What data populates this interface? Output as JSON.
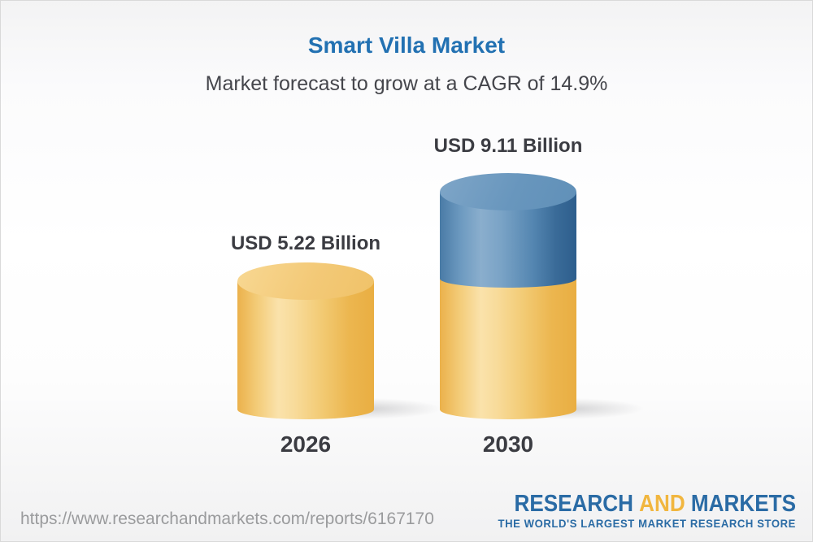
{
  "header": {
    "title": "Smart Villa Market",
    "subtitle": "Market forecast to grow at a CAGR of 14.9%"
  },
  "chart_data": {
    "type": "bar",
    "variant": "3d-cylinder",
    "categories": [
      "2026",
      "2030"
    ],
    "values": [
      5.22,
      9.11
    ],
    "unit": "USD Billion",
    "value_labels": [
      "USD 5.22 Billion",
      "USD 9.11 Billion"
    ],
    "cagr_percent": 14.9,
    "legend": "none",
    "grid": false,
    "axis": "none",
    "colors": {
      "yellow_bar": "#F0C266",
      "blue_growth_segment": "#5E8FB8",
      "title_blue": "#2271B2",
      "label_dark": "#3B3C42"
    },
    "layout": "2030 cylinder is stacked: yellow base equal to 2026 value, blue top segment is the growth increment"
  },
  "footer": {
    "url": "https://www.researchandmarkets.com/reports/6167170",
    "logo": {
      "word1": "RESEARCH",
      "word2": "AND",
      "word3": "MARKETS",
      "tagline": "THE WORLD'S LARGEST MARKET RESEARCH STORE",
      "blue": "#2A6BA5",
      "yellow": "#F1B63F"
    }
  }
}
